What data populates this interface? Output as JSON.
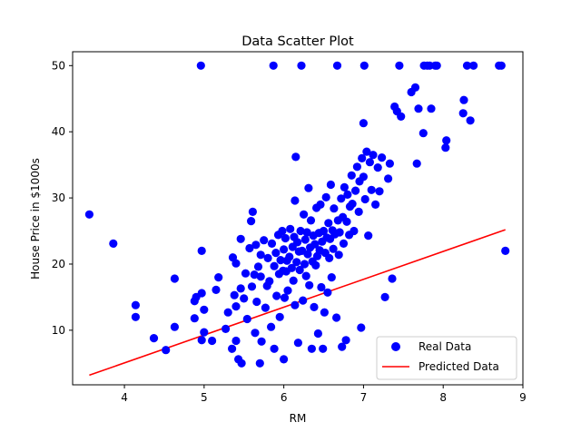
{
  "chart_data": {
    "type": "scatter",
    "title": "Data Scatter Plot",
    "xlabel": "RM",
    "ylabel": "House Price in $1000s",
    "xlim": [
      3.35,
      9.0
    ],
    "ylim": [
      1.75,
      52.1
    ],
    "xticks": [
      4,
      5,
      6,
      7,
      8,
      9
    ],
    "yticks": [
      10,
      20,
      30,
      40,
      50
    ],
    "grid": false,
    "legend_position": "lower-right",
    "colors": {
      "points": "#0000ff",
      "line": "#ff0000",
      "axis": "#000000"
    },
    "series": [
      {
        "name": "Real Data",
        "kind": "scatter",
        "points": [
          [
            3.56,
            27.5
          ],
          [
            3.86,
            23.1
          ],
          [
            4.14,
            13.8
          ],
          [
            4.14,
            12.0
          ],
          [
            4.37,
            8.8
          ],
          [
            4.52,
            7.0
          ],
          [
            4.63,
            17.8
          ],
          [
            4.63,
            10.5
          ],
          [
            4.88,
            14.4
          ],
          [
            4.88,
            11.8
          ],
          [
            4.9,
            15.0
          ],
          [
            4.96,
            50.0
          ],
          [
            4.97,
            22.0
          ],
          [
            4.97,
            8.5
          ],
          [
            4.97,
            15.6
          ],
          [
            5.0,
            9.7
          ],
          [
            5.0,
            13.1
          ],
          [
            5.1,
            8.4
          ],
          [
            5.15,
            16.1
          ],
          [
            5.18,
            18.0
          ],
          [
            5.27,
            10.2
          ],
          [
            5.3,
            12.7
          ],
          [
            5.35,
            7.2
          ],
          [
            5.36,
            21.0
          ],
          [
            5.38,
            15.3
          ],
          [
            5.4,
            8.4
          ],
          [
            5.4,
            13.6
          ],
          [
            5.4,
            20.1
          ],
          [
            5.43,
            5.6
          ],
          [
            5.46,
            16.3
          ],
          [
            5.46,
            23.8
          ],
          [
            5.47,
            5.0
          ],
          [
            5.5,
            14.8
          ],
          [
            5.52,
            18.6
          ],
          [
            5.54,
            11.7
          ],
          [
            5.57,
            22.4
          ],
          [
            5.59,
            26.5
          ],
          [
            5.6,
            16.6
          ],
          [
            5.61,
            27.9
          ],
          [
            5.63,
            18.4
          ],
          [
            5.64,
            9.6
          ],
          [
            5.65,
            22.9
          ],
          [
            5.66,
            14.3
          ],
          [
            5.68,
            19.6
          ],
          [
            5.7,
            5.0
          ],
          [
            5.71,
            21.4
          ],
          [
            5.71,
            18.1
          ],
          [
            5.72,
            8.3
          ],
          [
            5.75,
            23.6
          ],
          [
            5.77,
            13.4
          ],
          [
            5.79,
            16.7
          ],
          [
            5.8,
            20.9
          ],
          [
            5.82,
            17.4
          ],
          [
            5.84,
            10.5
          ],
          [
            5.85,
            23.1
          ],
          [
            5.87,
            50.0
          ],
          [
            5.88,
            19.7
          ],
          [
            5.88,
            7.2
          ],
          [
            5.9,
            21.7
          ],
          [
            5.91,
            15.2
          ],
          [
            5.93,
            24.4
          ],
          [
            5.94,
            18.5
          ],
          [
            5.95,
            12.0
          ],
          [
            5.96,
            20.6
          ],
          [
            5.98,
            25.0
          ],
          [
            5.99,
            19.0
          ],
          [
            6.0,
            22.2
          ],
          [
            6.0,
            5.6
          ],
          [
            6.01,
            14.9
          ],
          [
            6.02,
            23.9
          ],
          [
            6.03,
            18.9
          ],
          [
            6.04,
            20.5
          ],
          [
            6.05,
            16.0
          ],
          [
            6.07,
            21.1
          ],
          [
            6.08,
            25.3
          ],
          [
            6.1,
            19.4
          ],
          [
            6.11,
            22.6
          ],
          [
            6.12,
            17.5
          ],
          [
            6.13,
            24.1
          ],
          [
            6.14,
            13.8
          ],
          [
            6.14,
            29.6
          ],
          [
            6.15,
            36.2
          ],
          [
            6.16,
            20.3
          ],
          [
            6.17,
            23.3
          ],
          [
            6.18,
            8.1
          ],
          [
            6.19,
            21.9
          ],
          [
            6.2,
            19.1
          ],
          [
            6.21,
            25.0
          ],
          [
            6.22,
            50.0
          ],
          [
            6.23,
            22.0
          ],
          [
            6.24,
            14.5
          ],
          [
            6.25,
            27.5
          ],
          [
            6.26,
            20.0
          ],
          [
            6.27,
            23.7
          ],
          [
            6.28,
            18.2
          ],
          [
            6.29,
            24.8
          ],
          [
            6.3,
            21.5
          ],
          [
            6.31,
            31.5
          ],
          [
            6.32,
            16.8
          ],
          [
            6.33,
            22.5
          ],
          [
            6.34,
            26.6
          ],
          [
            6.35,
            7.2
          ],
          [
            6.36,
            20.4
          ],
          [
            6.37,
            24.3
          ],
          [
            6.38,
            13.5
          ],
          [
            6.39,
            23.0
          ],
          [
            6.4,
            19.8
          ],
          [
            6.41,
            28.5
          ],
          [
            6.42,
            21.2
          ],
          [
            6.43,
            9.5
          ],
          [
            6.44,
            24.7
          ],
          [
            6.45,
            22.1
          ],
          [
            6.46,
            29.0
          ],
          [
            6.47,
            16.5
          ],
          [
            6.48,
            23.4
          ],
          [
            6.49,
            7.2
          ],
          [
            6.5,
            25.0
          ],
          [
            6.51,
            12.7
          ],
          [
            6.52,
            21.7
          ],
          [
            6.53,
            30.1
          ],
          [
            6.54,
            24.0
          ],
          [
            6.55,
            15.7
          ],
          [
            6.56,
            26.2
          ],
          [
            6.57,
            20.9
          ],
          [
            6.58,
            23.8
          ],
          [
            6.59,
            32.0
          ],
          [
            6.6,
            18.0
          ],
          [
            6.61,
            25.1
          ],
          [
            6.62,
            22.3
          ],
          [
            6.63,
            28.4
          ],
          [
            6.64,
            24.5
          ],
          [
            6.66,
            11.9
          ],
          [
            6.67,
            50.0
          ],
          [
            6.68,
            26.6
          ],
          [
            6.69,
            21.4
          ],
          [
            6.7,
            24.8
          ],
          [
            6.72,
            29.9
          ],
          [
            6.73,
            7.5
          ],
          [
            6.74,
            27.1
          ],
          [
            6.75,
            23.1
          ],
          [
            6.76,
            31.6
          ],
          [
            6.78,
            8.5
          ],
          [
            6.79,
            26.4
          ],
          [
            6.8,
            30.5
          ],
          [
            6.82,
            24.4
          ],
          [
            6.83,
            28.7
          ],
          [
            6.85,
            33.4
          ],
          [
            6.86,
            29.1
          ],
          [
            6.88,
            25.0
          ],
          [
            6.9,
            31.1
          ],
          [
            6.92,
            34.7
          ],
          [
            6.94,
            27.9
          ],
          [
            6.95,
            32.5
          ],
          [
            6.97,
            10.4
          ],
          [
            6.98,
            36.0
          ],
          [
            7.0,
            33.2
          ],
          [
            7.0,
            41.3
          ],
          [
            7.01,
            50.0
          ],
          [
            7.02,
            29.8
          ],
          [
            7.04,
            37.0
          ],
          [
            7.06,
            24.3
          ],
          [
            7.08,
            35.4
          ],
          [
            7.1,
            31.2
          ],
          [
            7.12,
            36.5
          ],
          [
            7.15,
            29.0
          ],
          [
            7.18,
            34.6
          ],
          [
            7.2,
            31.0
          ],
          [
            7.23,
            36.1
          ],
          [
            7.27,
            15.0
          ],
          [
            7.31,
            32.9
          ],
          [
            7.33,
            35.2
          ],
          [
            7.36,
            17.8
          ],
          [
            7.39,
            43.8
          ],
          [
            7.42,
            43.1
          ],
          [
            7.45,
            50.0
          ],
          [
            7.47,
            42.3
          ],
          [
            7.6,
            46.0
          ],
          [
            7.65,
            46.7
          ],
          [
            7.67,
            35.2
          ],
          [
            7.69,
            43.5
          ],
          [
            7.75,
            39.8
          ],
          [
            7.76,
            50.0
          ],
          [
            7.8,
            50.0
          ],
          [
            7.83,
            50.0
          ],
          [
            7.85,
            43.5
          ],
          [
            7.9,
            50.0
          ],
          [
            7.92,
            50.0
          ],
          [
            8.03,
            37.6
          ],
          [
            8.04,
            38.7
          ],
          [
            8.25,
            42.8
          ],
          [
            8.26,
            44.8
          ],
          [
            8.3,
            50.0
          ],
          [
            8.34,
            41.7
          ],
          [
            8.38,
            50.0
          ],
          [
            8.7,
            50.0
          ],
          [
            8.73,
            50.0
          ],
          [
            8.78,
            22.0
          ]
        ]
      },
      {
        "name": "Predicted Data",
        "kind": "line",
        "x": [
          3.56,
          8.78
        ],
        "y": [
          3.2,
          25.2
        ]
      }
    ]
  }
}
